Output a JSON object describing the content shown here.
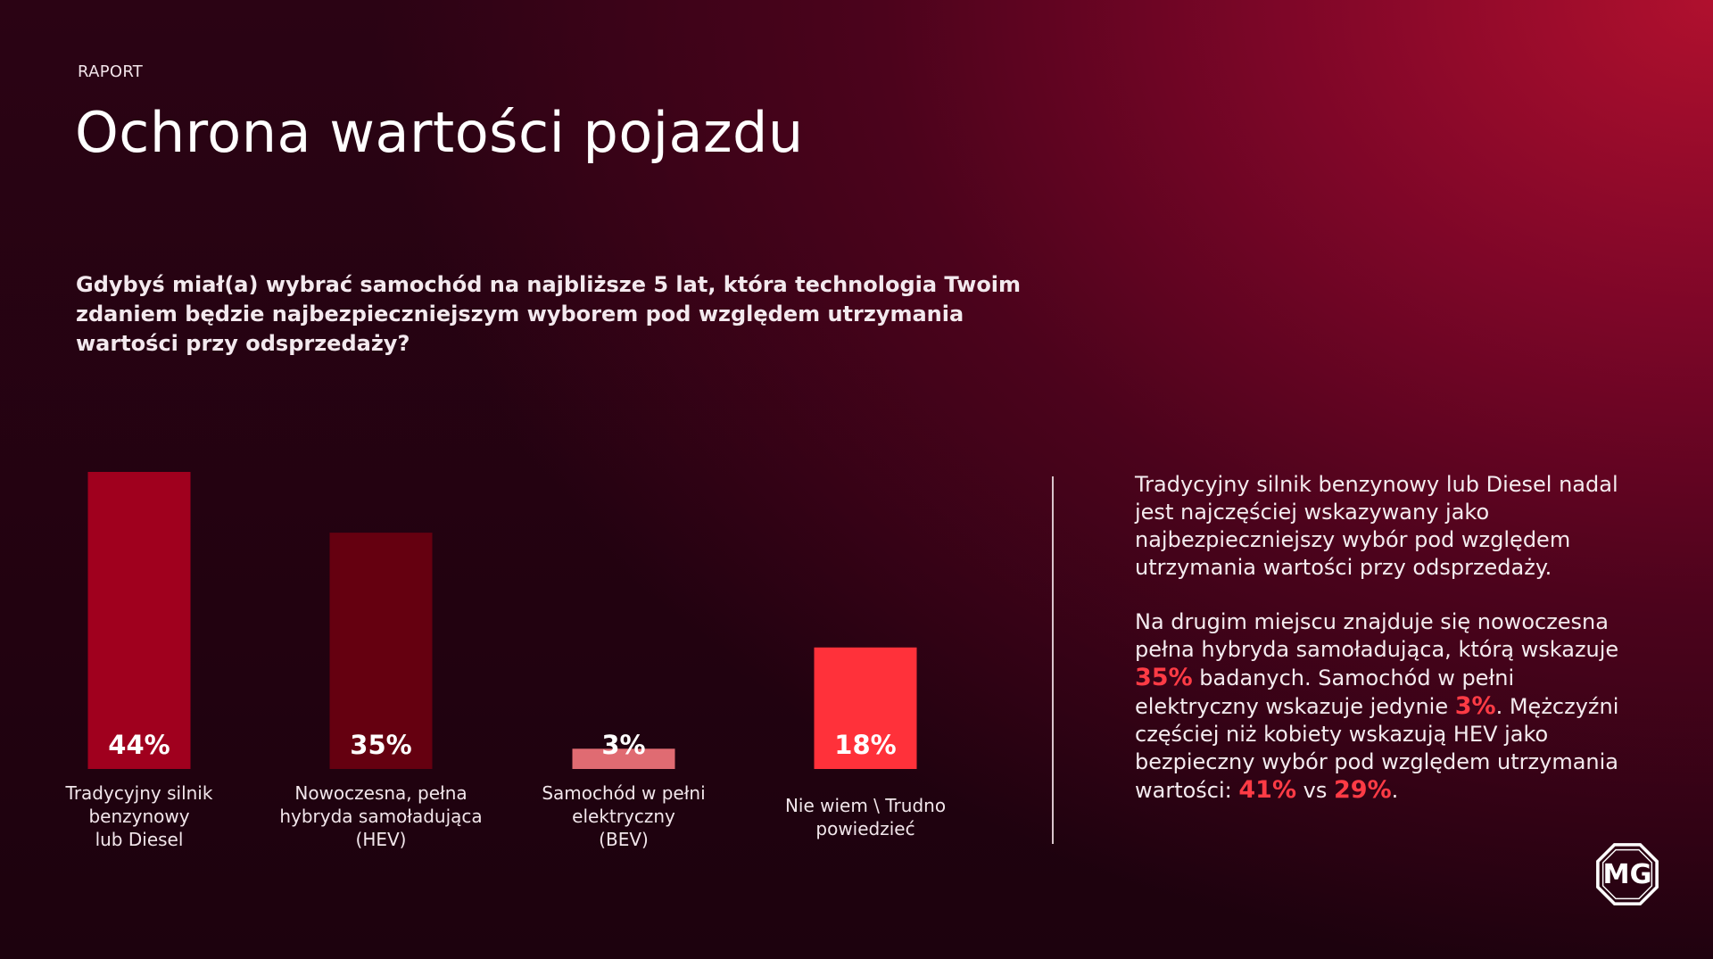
{
  "header": {
    "eyebrow": "RAPORT",
    "title": "Ochrona wartości pojazdu"
  },
  "question": "Gdybyś miał(a) wybrać samochód na najbliższe 5 lat, która technologia Twoim zdaniem będzie najbezpieczniejszym wyborem pod względem utrzymania wartości przy odsprzedaży?",
  "chart_data": {
    "type": "bar",
    "categories": [
      [
        "Tradycyjny silnik",
        "benzynowy",
        "lub Diesel"
      ],
      [
        "Nowoczesna, pełna",
        "hybryda samoładująca",
        "(HEV)"
      ],
      [
        "Samochód w pełni",
        "elektryczny",
        "(BEV)"
      ],
      [
        "Nie wiem \\ Trudno",
        "powiedzieć"
      ]
    ],
    "values": [
      44,
      35,
      3,
      18
    ],
    "value_labels": [
      "44%",
      "35%",
      "3%",
      "18%"
    ],
    "colors": [
      "#a0001e",
      "#650010",
      "#e06b72",
      "#ff313a"
    ],
    "unit": "%",
    "ylim": [
      0,
      44
    ],
    "grid": false,
    "legend": "none"
  },
  "commentary": {
    "p1": "Tradycyjny silnik benzynowy lub Diesel nadal jest najczęściej wskazywany jako najbezpieczniejszy wybór pod względem utrzymania wartości przy odsprzedaży.",
    "p2_a": "Na drugim miejscu znajduje się nowoczesna pełna hybryda samoładująca, którą wskazuje ",
    "p2_hl1": "35%",
    "p2_b": " badanych. Samochód w pełni elektryczny wskazuje jedynie ",
    "p2_hl2": "3%",
    "p2_c": ". Mężczyźni częściej niż kobiety wskazują HEV jako bezpieczny wybór pod względem utrzymania wartości: ",
    "p2_hl3": "41%",
    "p2_d": " vs ",
    "p2_hl4": "29%",
    "p2_e": "."
  },
  "logo": {
    "text": "MG",
    "icon": "mg-logo-icon"
  },
  "colors": {
    "accent": "#ff3b45",
    "bg_dark": "#1d020e",
    "bg_red": "#b0102e"
  }
}
